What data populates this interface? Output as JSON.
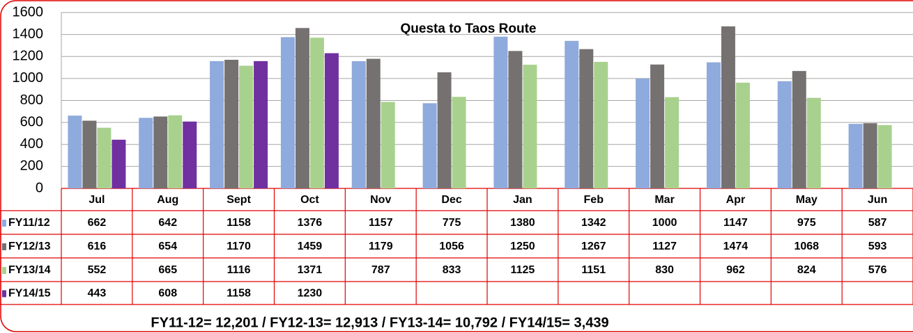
{
  "chart_data": {
    "type": "bar",
    "title": "Questa to Taos Route",
    "categories": [
      "Jul",
      "Aug",
      "Sept",
      "Oct",
      "Nov",
      "Dec",
      "Jan",
      "Feb",
      "Mar",
      "Apr",
      "May",
      "Jun"
    ],
    "series": [
      {
        "name": "FY11/12",
        "color": "#8faadc",
        "values": [
          662,
          642,
          1158,
          1376,
          1157,
          775,
          1380,
          1342,
          1000,
          1147,
          975,
          587
        ]
      },
      {
        "name": "FY12/13",
        "color": "#767171",
        "values": [
          616,
          654,
          1170,
          1459,
          1179,
          1056,
          1250,
          1267,
          1127,
          1474,
          1068,
          593
        ]
      },
      {
        "name": "FY13/14",
        "color": "#a9d18e",
        "values": [
          552,
          665,
          1116,
          1371,
          787,
          833,
          1125,
          1151,
          830,
          962,
          824,
          576
        ]
      },
      {
        "name": "FY14/15",
        "color": "#7030a0",
        "values": [
          443,
          608,
          1158,
          1230,
          null,
          null,
          null,
          null,
          null,
          null,
          null,
          null
        ]
      }
    ],
    "ylim": [
      0,
      1600
    ],
    "yticks": [
      0,
      200,
      400,
      600,
      800,
      1000,
      1200,
      1400,
      1600
    ],
    "grid": true,
    "annotation": "FY11-12=  12,201  /  FY12-13= 12,913 / FY13-14= 10,792 / FY14/15= 3,439"
  }
}
